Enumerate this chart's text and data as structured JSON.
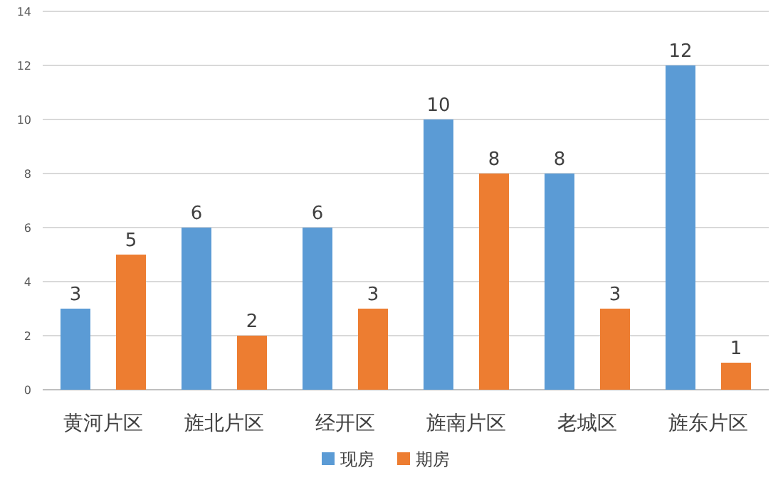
{
  "chart_data": {
    "type": "bar",
    "categories": [
      "黄河片区",
      "旌北片区",
      "经开区",
      "旌南片区",
      "老城区",
      "旌东片区"
    ],
    "series": [
      {
        "name": "现房",
        "color": "#5b9bd5",
        "values": [
          3,
          6,
          6,
          10,
          8,
          12
        ]
      },
      {
        "name": "期房",
        "color": "#ed7d31",
        "values": [
          5,
          2,
          3,
          8,
          3,
          1
        ]
      }
    ],
    "ylim": [
      0,
      14
    ],
    "yticks": [
      0,
      2,
      4,
      6,
      8,
      10,
      12,
      14
    ],
    "grid": "y",
    "legend": "bottom",
    "data_labels": true
  }
}
